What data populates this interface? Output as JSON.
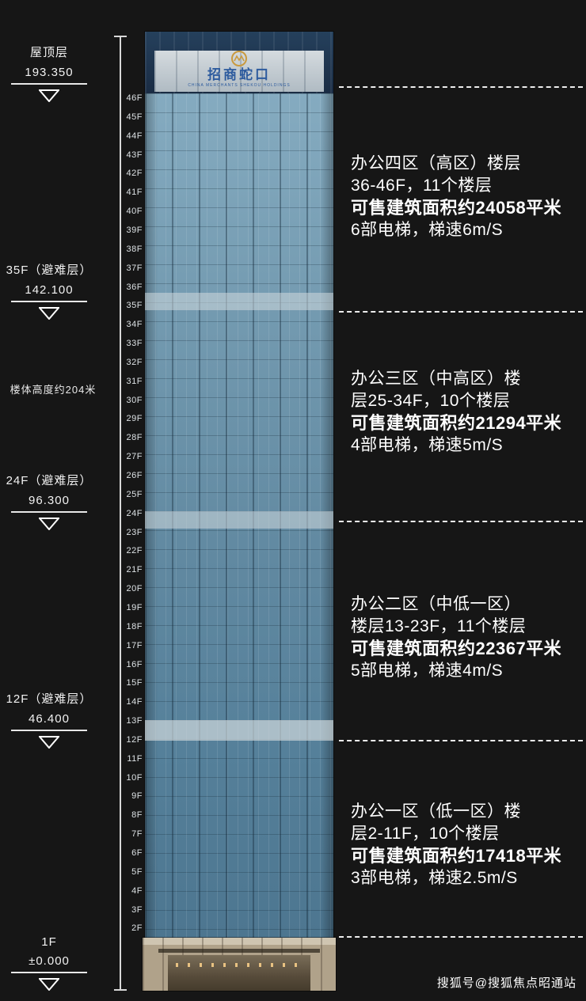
{
  "page": {
    "watermark": "搜狐号@搜狐焦点昭通站"
  },
  "building": {
    "logo": {
      "chars": "招商蛇口",
      "subtext": "CHINA MERCHANTS SHEKOU HOLDINGS"
    },
    "floors": [
      "46F",
      "45F",
      "44F",
      "43F",
      "42F",
      "41F",
      "40F",
      "39F",
      "38F",
      "37F",
      "36F",
      "35F",
      "34F",
      "33F",
      "32F",
      "31F",
      "30F",
      "29F",
      "28F",
      "27F",
      "26F",
      "25F",
      "24F",
      "23F",
      "22F",
      "21F",
      "20F",
      "19F",
      "18F",
      "17F",
      "16F",
      "15F",
      "14F",
      "13F",
      "12F",
      "11F",
      "10F",
      "9F",
      "8F",
      "7F",
      "6F",
      "5F",
      "4F",
      "3F",
      "2F"
    ]
  },
  "height_note": "楼体高度约204米",
  "left_markers": [
    {
      "label": "屋顶层",
      "value": "193.350"
    },
    {
      "label": "35F（避难层）",
      "value": "142.100"
    },
    {
      "label": "24F（避难层）",
      "value": "96.300"
    },
    {
      "label": "12F（避难层）",
      "value": "46.400"
    },
    {
      "label": "1F",
      "value": "±0.000"
    }
  ],
  "zones": [
    {
      "line1": "办公四区（高区）楼层",
      "line2": "36-46F，11个楼层",
      "line3": "可售建筑面积约24058平米",
      "line4": "6部电梯，梯速6m/S"
    },
    {
      "line1": "办公三区（中高区）楼",
      "line2": "层25-34F，10个楼层",
      "line3": "可售建筑面积约21294平米",
      "line4": "4部电梯，梯速5m/S"
    },
    {
      "line1": "办公二区（中低一区）",
      "line2": "楼层13-23F，11个楼层",
      "line3": "可售建筑面积约22367平米",
      "line4": "5部电梯，梯速4m/S"
    },
    {
      "line1": "办公一区（低一区）楼",
      "line2": "层2-11F，10个楼层",
      "line3": "可售建筑面积约17418平米",
      "line4": "3部电梯，梯速2.5m/S"
    }
  ],
  "colors": {
    "background": "#161616",
    "glass_blue": "#6189a1",
    "crown_navy": "#1d3148",
    "podium_beige": "#b0a28a",
    "logo_blue": "#2d5b9e",
    "text_white": "#ffffff"
  }
}
